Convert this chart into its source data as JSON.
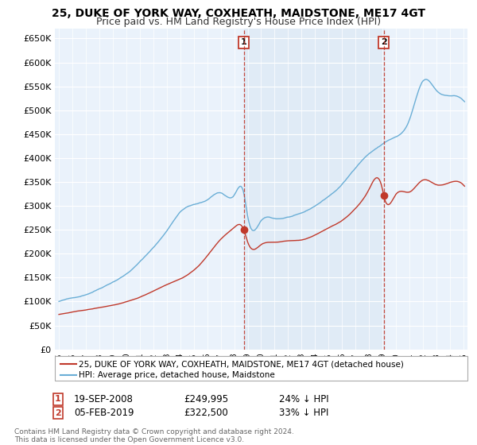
{
  "title": "25, DUKE OF YORK WAY, COXHEATH, MAIDSTONE, ME17 4GT",
  "subtitle": "Price paid vs. HM Land Registry's House Price Index (HPI)",
  "ylim": [
    0,
    670000
  ],
  "yticks": [
    0,
    50000,
    100000,
    150000,
    200000,
    250000,
    300000,
    350000,
    400000,
    450000,
    500000,
    550000,
    600000,
    650000
  ],
  "ytick_labels": [
    "£0",
    "£50K",
    "£100K",
    "£150K",
    "£200K",
    "£250K",
    "£300K",
    "£350K",
    "£400K",
    "£450K",
    "£500K",
    "£550K",
    "£600K",
    "£650K"
  ],
  "hpi_color": "#6aaed6",
  "price_color": "#c0392b",
  "vline_color": "#c0392b",
  "shade_color": "#dce9f5",
  "background_color": "#eaf2fb",
  "grid_color": "#ffffff",
  "sale1_year": 2008.72,
  "sale1_price": 249995,
  "sale2_year": 2019.09,
  "sale2_price": 322500,
  "legend_line1": "25, DUKE OF YORK WAY, COXHEATH, MAIDSTONE, ME17 4GT (detached house)",
  "legend_line2": "HPI: Average price, detached house, Maidstone",
  "footer": "Contains HM Land Registry data © Crown copyright and database right 2024.\nThis data is licensed under the Open Government Licence v3.0.",
  "title_fontsize": 10,
  "subtitle_fontsize": 9,
  "hpi_anchors_x": [
    1995,
    1996,
    1997,
    1998,
    1999,
    2000,
    2001,
    2002,
    2003,
    2004,
    2005,
    2006,
    2007,
    2008,
    2008.72,
    2009,
    2010,
    2011,
    2012,
    2013,
    2014,
    2015,
    2016,
    2017,
    2018,
    2019,
    2019.09,
    2020,
    2021,
    2022,
    2023,
    2024,
    2025
  ],
  "hpi_anchors_y": [
    100000,
    107000,
    115000,
    128000,
    143000,
    160000,
    185000,
    215000,
    250000,
    290000,
    305000,
    315000,
    330000,
    325000,
    328000,
    280000,
    270000,
    275000,
    278000,
    285000,
    300000,
    320000,
    345000,
    380000,
    410000,
    430000,
    432000,
    445000,
    480000,
    560000,
    540000,
    530000,
    520000
  ],
  "red_anchors_x": [
    1995,
    1997,
    1999,
    2001,
    2003,
    2005,
    2006,
    2007,
    2008,
    2008.72,
    2009,
    2010,
    2011,
    2012,
    2013,
    2014,
    2015,
    2016,
    2017,
    2018,
    2019,
    2019.09,
    2020,
    2021,
    2022,
    2023,
    2024,
    2025
  ],
  "red_anchors_y": [
    73000,
    82000,
    92000,
    108000,
    135000,
    165000,
    195000,
    230000,
    255000,
    249995,
    225000,
    220000,
    225000,
    228000,
    230000,
    240000,
    255000,
    270000,
    295000,
    335000,
    335000,
    322500,
    325000,
    330000,
    355000,
    345000,
    350000,
    345000
  ]
}
